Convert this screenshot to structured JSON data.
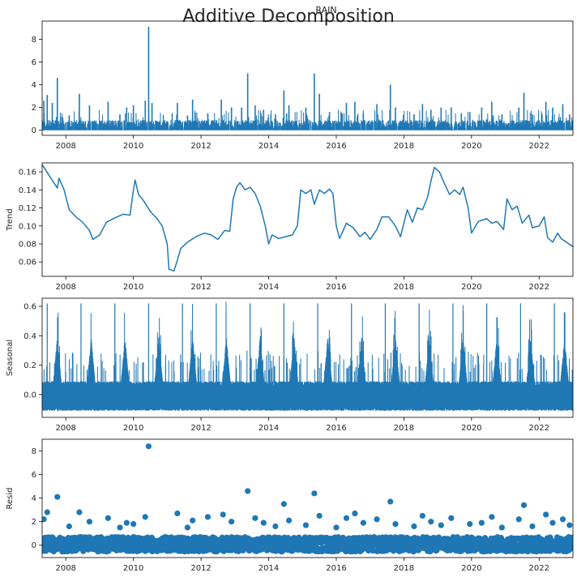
{
  "figure": {
    "suptitle": "Additive Decomposition",
    "line_color": "#1f77b4"
  },
  "chart_data": [
    {
      "type": "line",
      "title": "RAIN",
      "ylabel": "",
      "xlim": [
        2007.3,
        2023.0
      ],
      "ylim": [
        -0.45,
        9.6
      ],
      "xticks": [
        2008,
        2010,
        2012,
        2014,
        2016,
        2018,
        2020,
        2022
      ],
      "yticks": [
        0,
        2,
        4,
        6,
        8
      ],
      "ytick_labels": [
        "0",
        "2",
        "4",
        "6",
        "8"
      ],
      "baseline": 0,
      "noise_max": 0.9,
      "peaks": [
        [
          2007.35,
          2.6
        ],
        [
          2007.45,
          3.1
        ],
        [
          2007.6,
          2.4
        ],
        [
          2007.75,
          4.6
        ],
        [
          2008.1,
          1.3
        ],
        [
          2008.4,
          3.2
        ],
        [
          2008.7,
          2.2
        ],
        [
          2009.25,
          2.5
        ],
        [
          2009.6,
          1.4
        ],
        [
          2009.8,
          2.0
        ],
        [
          2010.0,
          2.2
        ],
        [
          2010.35,
          2.6
        ],
        [
          2010.45,
          9.1
        ],
        [
          2010.55,
          2.4
        ],
        [
          2011.3,
          2.4
        ],
        [
          2011.6,
          1.3
        ],
        [
          2011.75,
          2.7
        ],
        [
          2012.2,
          1.5
        ],
        [
          2012.6,
          2.7
        ],
        [
          2012.9,
          2.0
        ],
        [
          2013.2,
          2.0
        ],
        [
          2013.38,
          5.0
        ],
        [
          2013.6,
          2.2
        ],
        [
          2013.85,
          1.8
        ],
        [
          2014.2,
          1.4
        ],
        [
          2014.45,
          3.5
        ],
        [
          2014.6,
          2.2
        ],
        [
          2015.1,
          2.0
        ],
        [
          2015.35,
          5.0
        ],
        [
          2015.5,
          3.2
        ],
        [
          2015.8,
          1.6
        ],
        [
          2016.3,
          2.4
        ],
        [
          2016.55,
          2.5
        ],
        [
          2016.8,
          1.5
        ],
        [
          2017.2,
          2.3
        ],
        [
          2017.6,
          4.0
        ],
        [
          2017.75,
          2.0
        ],
        [
          2018.3,
          1.4
        ],
        [
          2018.55,
          2.3
        ],
        [
          2018.8,
          1.8
        ],
        [
          2019.1,
          2.0
        ],
        [
          2019.4,
          2.0
        ],
        [
          2019.7,
          1.5
        ],
        [
          2019.95,
          1.6
        ],
        [
          2020.3,
          2.0
        ],
        [
          2020.6,
          2.5
        ],
        [
          2020.9,
          1.4
        ],
        [
          2021.4,
          2.0
        ],
        [
          2021.55,
          3.3
        ],
        [
          2021.8,
          1.4
        ],
        [
          2022.2,
          2.5
        ],
        [
          2022.4,
          2.0
        ],
        [
          2022.7,
          2.3
        ],
        [
          2022.9,
          1.4
        ]
      ]
    },
    {
      "type": "line",
      "title": "",
      "ylabel": "Trend",
      "xlim": [
        2007.3,
        2023.0
      ],
      "ylim": [
        0.044,
        0.17
      ],
      "xticks": [
        2008,
        2010,
        2012,
        2014,
        2016,
        2018,
        2020,
        2022
      ],
      "yticks": [
        0.06,
        0.08,
        0.1,
        0.12,
        0.14,
        0.16
      ],
      "ytick_labels": [
        "0.06",
        "0.08",
        "0.10",
        "0.12",
        "0.14",
        "0.16"
      ],
      "points": [
        [
          2007.3,
          0.168
        ],
        [
          2007.75,
          0.142
        ],
        [
          2007.8,
          0.153
        ],
        [
          2007.95,
          0.14
        ],
        [
          2008.1,
          0.118
        ],
        [
          2008.3,
          0.11
        ],
        [
          2008.5,
          0.104
        ],
        [
          2008.7,
          0.095
        ],
        [
          2008.8,
          0.085
        ],
        [
          2009.0,
          0.09
        ],
        [
          2009.2,
          0.104
        ],
        [
          2009.45,
          0.109
        ],
        [
          2009.7,
          0.113
        ],
        [
          2009.9,
          0.112
        ],
        [
          2010.0,
          0.14
        ],
        [
          2010.05,
          0.151
        ],
        [
          2010.15,
          0.135
        ],
        [
          2010.3,
          0.128
        ],
        [
          2010.5,
          0.116
        ],
        [
          2010.7,
          0.108
        ],
        [
          2010.85,
          0.1
        ],
        [
          2011.0,
          0.08
        ],
        [
          2011.05,
          0.052
        ],
        [
          2011.2,
          0.05
        ],
        [
          2011.3,
          0.062
        ],
        [
          2011.4,
          0.075
        ],
        [
          2011.6,
          0.082
        ],
        [
          2011.85,
          0.088
        ],
        [
          2012.1,
          0.092
        ],
        [
          2012.3,
          0.09
        ],
        [
          2012.5,
          0.085
        ],
        [
          2012.7,
          0.095
        ],
        [
          2012.85,
          0.094
        ],
        [
          2012.95,
          0.13
        ],
        [
          2013.05,
          0.143
        ],
        [
          2013.15,
          0.148
        ],
        [
          2013.3,
          0.14
        ],
        [
          2013.45,
          0.143
        ],
        [
          2013.6,
          0.136
        ],
        [
          2013.75,
          0.122
        ],
        [
          2013.9,
          0.1
        ],
        [
          2014.0,
          0.08
        ],
        [
          2014.1,
          0.09
        ],
        [
          2014.3,
          0.086
        ],
        [
          2014.5,
          0.088
        ],
        [
          2014.7,
          0.09
        ],
        [
          2014.85,
          0.1
        ],
        [
          2014.95,
          0.14
        ],
        [
          2015.1,
          0.136
        ],
        [
          2015.25,
          0.14
        ],
        [
          2015.35,
          0.124
        ],
        [
          2015.5,
          0.14
        ],
        [
          2015.65,
          0.136
        ],
        [
          2015.8,
          0.141
        ],
        [
          2015.9,
          0.136
        ],
        [
          2016.0,
          0.1
        ],
        [
          2016.1,
          0.086
        ],
        [
          2016.3,
          0.103
        ],
        [
          2016.5,
          0.098
        ],
        [
          2016.7,
          0.088
        ],
        [
          2016.85,
          0.093
        ],
        [
          2017.0,
          0.085
        ],
        [
          2017.2,
          0.096
        ],
        [
          2017.35,
          0.11
        ],
        [
          2017.55,
          0.11
        ],
        [
          2017.75,
          0.1
        ],
        [
          2017.9,
          0.088
        ],
        [
          2018.1,
          0.118
        ],
        [
          2018.25,
          0.104
        ],
        [
          2018.4,
          0.12
        ],
        [
          2018.55,
          0.118
        ],
        [
          2018.7,
          0.132
        ],
        [
          2018.8,
          0.15
        ],
        [
          2018.9,
          0.165
        ],
        [
          2019.05,
          0.16
        ],
        [
          2019.2,
          0.147
        ],
        [
          2019.35,
          0.135
        ],
        [
          2019.5,
          0.14
        ],
        [
          2019.65,
          0.135
        ],
        [
          2019.75,
          0.143
        ],
        [
          2019.9,
          0.12
        ],
        [
          2020.0,
          0.092
        ],
        [
          2020.2,
          0.105
        ],
        [
          2020.45,
          0.108
        ],
        [
          2020.6,
          0.103
        ],
        [
          2020.75,
          0.105
        ],
        [
          2020.95,
          0.096
        ],
        [
          2021.05,
          0.13
        ],
        [
          2021.2,
          0.118
        ],
        [
          2021.35,
          0.122
        ],
        [
          2021.5,
          0.103
        ],
        [
          2021.7,
          0.112
        ],
        [
          2021.8,
          0.098
        ],
        [
          2022.0,
          0.1
        ],
        [
          2022.15,
          0.11
        ],
        [
          2022.25,
          0.087
        ],
        [
          2022.4,
          0.082
        ],
        [
          2022.55,
          0.092
        ],
        [
          2022.65,
          0.086
        ],
        [
          2023.0,
          0.077
        ]
      ]
    },
    {
      "type": "area",
      "title": "",
      "ylabel": "Seasonal",
      "xlim": [
        2007.3,
        2023.0
      ],
      "ylim": [
        -0.155,
        0.655
      ],
      "xticks": [
        2008,
        2010,
        2012,
        2014,
        2016,
        2018,
        2020,
        2022
      ],
      "yticks": [
        0.0,
        0.2,
        0.4,
        0.6
      ],
      "ytick_labels": [
        "0.0",
        "0.2",
        "0.4",
        "0.6"
      ],
      "band_min": -0.11,
      "band_max": 0.07,
      "peak_value": 0.62,
      "secondary_value": 0.3,
      "period_years": 1.0,
      "peak_phase": 0.45
    },
    {
      "type": "scatter",
      "title": "",
      "ylabel": "Resid",
      "xlim": [
        2007.3,
        2023.0
      ],
      "ylim": [
        -1.05,
        9.0
      ],
      "xticks": [
        2008,
        2010,
        2012,
        2014,
        2016,
        2018,
        2020,
        2022
      ],
      "yticks": [
        0,
        2,
        4,
        6,
        8
      ],
      "ytick_labels": [
        "0",
        "2",
        "4",
        "6",
        "8"
      ],
      "noise_min": -0.55,
      "noise_max": 0.7,
      "outliers": [
        [
          2010.45,
          8.4
        ],
        [
          2013.38,
          4.6
        ],
        [
          2015.35,
          4.4
        ],
        [
          2007.75,
          4.1
        ],
        [
          2017.6,
          3.7
        ],
        [
          2014.45,
          3.5
        ],
        [
          2021.55,
          3.4
        ],
        [
          2008.4,
          2.8
        ],
        [
          2011.3,
          2.7
        ],
        [
          2012.65,
          2.6
        ],
        [
          2016.55,
          2.7
        ],
        [
          2007.45,
          2.8
        ],
        [
          2022.2,
          2.6
        ],
        [
          2009.25,
          2.3
        ],
        [
          2010.35,
          2.4
        ],
        [
          2012.2,
          2.4
        ],
        [
          2013.6,
          2.3
        ],
        [
          2015.5,
          2.5
        ],
        [
          2016.3,
          2.3
        ],
        [
          2017.2,
          2.2
        ],
        [
          2018.55,
          2.5
        ],
        [
          2019.4,
          2.3
        ],
        [
          2020.6,
          2.4
        ],
        [
          2021.4,
          2.2
        ],
        [
          2022.7,
          2.2
        ],
        [
          2008.7,
          2.0
        ],
        [
          2009.8,
          1.9
        ],
        [
          2011.75,
          2.1
        ],
        [
          2013.85,
          1.9
        ],
        [
          2014.6,
          2.1
        ],
        [
          2016.8,
          1.9
        ],
        [
          2018.8,
          2.0
        ],
        [
          2019.95,
          1.8
        ],
        [
          2020.3,
          1.9
        ],
        [
          2022.4,
          1.9
        ],
        [
          2007.35,
          2.2
        ],
        [
          2008.1,
          1.6
        ],
        [
          2010.0,
          1.8
        ],
        [
          2012.9,
          2.0
        ],
        [
          2015.1,
          1.7
        ],
        [
          2017.75,
          1.8
        ],
        [
          2019.1,
          1.7
        ],
        [
          2021.8,
          1.6
        ],
        [
          2022.9,
          1.7
        ],
        [
          2009.6,
          1.5
        ],
        [
          2011.6,
          1.5
        ],
        [
          2014.2,
          1.6
        ],
        [
          2016.0,
          1.5
        ],
        [
          2018.3,
          1.6
        ],
        [
          2020.9,
          1.5
        ]
      ]
    }
  ]
}
